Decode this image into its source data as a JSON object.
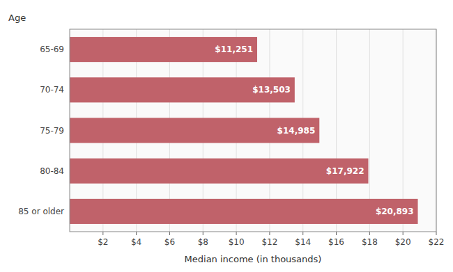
{
  "chart_data": {
    "type": "bar",
    "orientation": "horizontal",
    "categories": [
      "65-69",
      "70-74",
      "75-79",
      "80-84",
      "85 or older"
    ],
    "values": [
      11.251,
      13.503,
      14.985,
      17.922,
      20.893
    ],
    "value_labels": [
      "$11,251",
      "$13,503",
      "$14,985",
      "$17,922",
      "$20,893"
    ],
    "data_labels": true,
    "color": "#c0626a",
    "xlabel": "Median income (in thousands)",
    "ylabel": "Age",
    "xlim": [
      0,
      22
    ],
    "xticks": [
      {
        "value": 2,
        "label": "$2"
      },
      {
        "value": 4,
        "label": "$4"
      },
      {
        "value": 6,
        "label": "$6"
      },
      {
        "value": 8,
        "label": "$8"
      },
      {
        "value": 10,
        "label": "$10"
      },
      {
        "value": 12,
        "label": "$12"
      },
      {
        "value": 14,
        "label": "$14"
      },
      {
        "value": 16,
        "label": "$16"
      },
      {
        "value": 18,
        "label": "$18"
      },
      {
        "value": 20,
        "label": "$20"
      },
      {
        "value": 22,
        "label": "$22"
      }
    ],
    "grid": true
  }
}
